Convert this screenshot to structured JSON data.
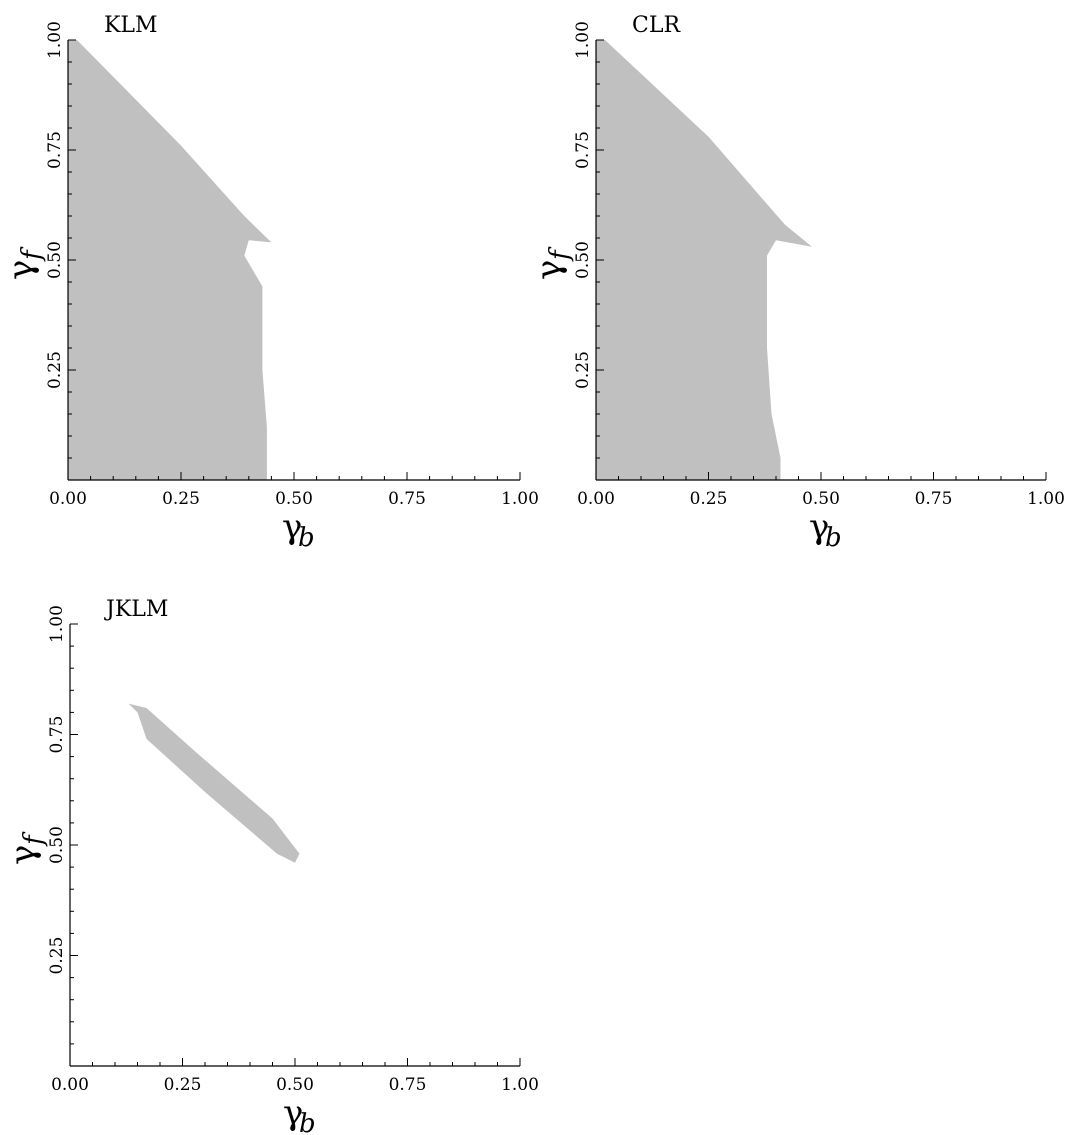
{
  "figure": {
    "fill_color": "#c0c0c0"
  },
  "chart_data": [
    {
      "type": "area",
      "title": "KLM",
      "xlabel_main": "γ",
      "xlabel_sub": "b",
      "ylabel_main": "γ",
      "ylabel_sub": "f",
      "xlim": [
        0,
        1
      ],
      "ylim": [
        0,
        1
      ],
      "x_ticks": [
        "0.00",
        "0.25",
        "0.50",
        "0.75",
        "1.00"
      ],
      "y_ticks": [
        "0.25",
        "0.50",
        "0.75",
        "1.00"
      ],
      "grid": false,
      "region": [
        [
          0.0,
          0.0
        ],
        [
          0.0,
          1.0
        ],
        [
          0.02,
          1.0
        ],
        [
          0.25,
          0.76
        ],
        [
          0.39,
          0.6
        ],
        [
          0.45,
          0.54
        ],
        [
          0.4,
          0.545
        ],
        [
          0.39,
          0.51
        ],
        [
          0.43,
          0.44
        ],
        [
          0.43,
          0.25
        ],
        [
          0.44,
          0.12
        ],
        [
          0.44,
          0.0
        ]
      ]
    },
    {
      "type": "area",
      "title": "CLR",
      "xlabel_main": "γ",
      "xlabel_sub": "b",
      "ylabel_main": "γ",
      "ylabel_sub": "f",
      "xlim": [
        0,
        1
      ],
      "ylim": [
        0,
        1
      ],
      "x_ticks": [
        "0.00",
        "0.25",
        "0.50",
        "0.75",
        "1.00"
      ],
      "y_ticks": [
        "0.25",
        "0.50",
        "0.75",
        "1.00"
      ],
      "grid": false,
      "region": [
        [
          0.0,
          0.0
        ],
        [
          0.0,
          1.0
        ],
        [
          0.02,
          1.0
        ],
        [
          0.25,
          0.78
        ],
        [
          0.42,
          0.58
        ],
        [
          0.48,
          0.53
        ],
        [
          0.4,
          0.545
        ],
        [
          0.38,
          0.51
        ],
        [
          0.38,
          0.3
        ],
        [
          0.39,
          0.15
        ],
        [
          0.41,
          0.05
        ],
        [
          0.41,
          0.0
        ]
      ]
    },
    {
      "type": "area",
      "title": "JKLM",
      "xlabel_main": "γ",
      "xlabel_sub": "b",
      "ylabel_main": "γ",
      "ylabel_sub": "f",
      "xlim": [
        0,
        1
      ],
      "ylim": [
        0,
        1
      ],
      "x_ticks": [
        "0.00",
        "0.25",
        "0.50",
        "0.75",
        "1.00"
      ],
      "y_ticks": [
        "0.25",
        "0.50",
        "0.75",
        "1.00"
      ],
      "grid": false,
      "region": [
        [
          0.13,
          0.82
        ],
        [
          0.17,
          0.81
        ],
        [
          0.28,
          0.71
        ],
        [
          0.45,
          0.56
        ],
        [
          0.51,
          0.48
        ],
        [
          0.5,
          0.46
        ],
        [
          0.46,
          0.48
        ],
        [
          0.3,
          0.62
        ],
        [
          0.17,
          0.74
        ],
        [
          0.15,
          0.8
        ]
      ]
    }
  ]
}
